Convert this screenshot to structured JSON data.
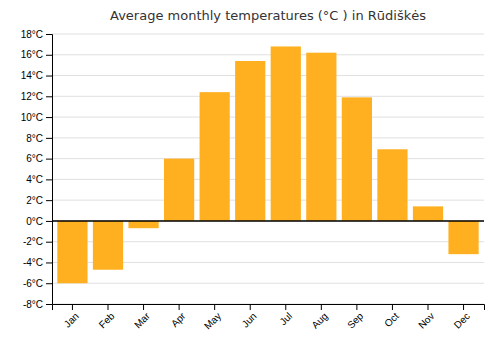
{
  "chart_data": {
    "type": "bar",
    "title": "Average monthly temperatures (°C ) in Rūdiškės",
    "categories": [
      "Jan",
      "Feb",
      "Mar",
      "Apr",
      "May",
      "Jun",
      "Jul",
      "Aug",
      "Sep",
      "Oct",
      "Nov",
      "Dec"
    ],
    "values": [
      -6.0,
      -4.7,
      -0.7,
      6.0,
      12.4,
      15.4,
      16.8,
      16.2,
      11.9,
      6.9,
      1.4,
      -3.2
    ],
    "color": "#FFB020",
    "ylim": [
      -8,
      18
    ],
    "yticks": [
      {
        "value": -8,
        "label": "-8°C"
      },
      {
        "value": -6,
        "label": "-6°C"
      },
      {
        "value": -4,
        "label": "-4°C"
      },
      {
        "value": -2,
        "label": "-2°C"
      },
      {
        "value": 0,
        "label": "0°C"
      },
      {
        "value": 2,
        "label": "2°C"
      },
      {
        "value": 4,
        "label": "4°C"
      },
      {
        "value": 6,
        "label": "6°C"
      },
      {
        "value": 8,
        "label": "8°C"
      },
      {
        "value": 10,
        "label": "10°C"
      },
      {
        "value": 12,
        "label": "12°C"
      },
      {
        "value": 14,
        "label": "14°C"
      },
      {
        "value": 16,
        "label": "16°C"
      },
      {
        "value": 18,
        "label": "18°C"
      }
    ],
    "grid": true
  }
}
